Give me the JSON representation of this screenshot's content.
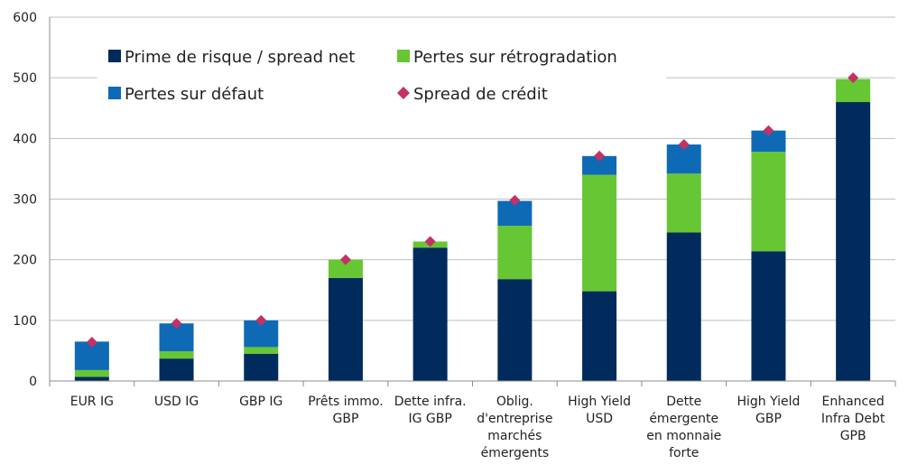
{
  "chart_data": {
    "type": "bar",
    "stacked": true,
    "title": "",
    "xlabel": "",
    "ylabel": "",
    "ylim": [
      0,
      600
    ],
    "yticks": [
      0,
      100,
      200,
      300,
      400,
      500,
      600
    ],
    "grid": true,
    "legend_position": "top-left",
    "categories": [
      [
        "EUR IG"
      ],
      [
        "USD IG"
      ],
      [
        "GBP IG"
      ],
      [
        "Prêts immo.",
        "GBP"
      ],
      [
        "Dette infra.",
        "IG GBP"
      ],
      [
        "Oblig.",
        "d'entreprise",
        "marchés",
        "émergents"
      ],
      [
        "High Yield",
        "USD"
      ],
      [
        "Dette",
        "émergente",
        "en monnaie",
        "forte"
      ],
      [
        "High Yield",
        "GBP"
      ],
      [
        "Enhanced",
        "Infra Debt",
        "GPB"
      ]
    ],
    "series": [
      {
        "name": "Prime de risque / spread net",
        "color": "#002b5c",
        "kind": "bar",
        "values": [
          7,
          37,
          45,
          170,
          220,
          168,
          148,
          245,
          214,
          460
        ]
      },
      {
        "name": "Pertes sur rétrogradation",
        "color": "#66c633",
        "kind": "bar",
        "values": [
          11,
          12,
          11,
          30,
          10,
          88,
          192,
          97,
          164,
          38
        ]
      },
      {
        "name": "Pertes sur défaut",
        "color": "#0e6ab5",
        "kind": "bar",
        "values": [
          47,
          46,
          44,
          0,
          0,
          41,
          31,
          48,
          35,
          0
        ]
      },
      {
        "name": "Spread de crédit",
        "color": "#c43166",
        "kind": "marker",
        "values": [
          64,
          95,
          100,
          200,
          230,
          298,
          371,
          390,
          413,
          500
        ]
      }
    ]
  }
}
